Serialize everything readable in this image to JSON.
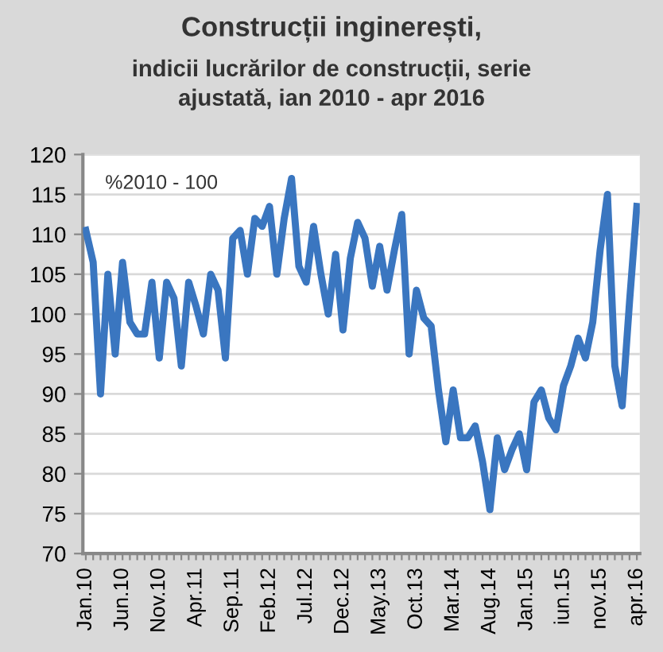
{
  "chart_data": {
    "type": "line",
    "title": "Construcții inginerești,",
    "subtitle": "indicii lucrărilor de construcții, serie\najustată, ian 2010 - apr 2016",
    "annotations": [
      "%2010 - 100"
    ],
    "categories": [
      "Jan.10",
      null,
      null,
      null,
      null,
      "Jun.10",
      null,
      null,
      null,
      null,
      "Nov.10",
      null,
      null,
      null,
      null,
      "Apr.11",
      null,
      null,
      null,
      null,
      "Sep.11",
      null,
      null,
      null,
      null,
      "Feb.12",
      null,
      null,
      null,
      null,
      "Jul.12",
      null,
      null,
      null,
      null,
      "Dec.12",
      null,
      null,
      null,
      null,
      "May.13",
      null,
      null,
      null,
      null,
      "Oct.13",
      null,
      null,
      null,
      null,
      "Mar.14",
      null,
      null,
      null,
      null,
      "Aug.14",
      null,
      null,
      null,
      null,
      "Jan.15",
      null,
      null,
      null,
      null,
      "iun.15",
      null,
      null,
      null,
      null,
      "nov.15",
      null,
      null,
      null,
      null,
      "apr.16"
    ],
    "series": [
      {
        "color": "#3a76c0",
        "values": [
          110.5,
          106.5,
          90,
          105,
          95,
          106.5,
          99,
          97.5,
          97.5,
          104,
          94.5,
          104,
          102,
          93.5,
          104,
          101,
          97.5,
          105,
          103,
          94.5,
          109.5,
          110.5,
          105,
          112,
          111,
          113.5,
          105,
          112,
          117,
          106,
          104,
          111,
          105,
          100,
          107.5,
          98,
          107,
          111.5,
          109.5,
          103.5,
          108.5,
          103,
          108,
          112.5,
          95,
          103,
          99.5,
          98.5,
          90.5,
          84,
          90.5,
          84.5,
          84.5,
          86,
          81.5,
          75.5,
          84.5,
          80.5,
          83,
          85,
          80.5,
          89,
          90.5,
          87,
          85.5,
          91,
          93.5,
          97,
          94.5,
          99,
          108,
          115,
          93.5,
          88.5,
          101.5,
          113.5
        ]
      }
    ],
    "ylim": [
      70,
      120
    ],
    "yticks": [
      70,
      75,
      80,
      85,
      90,
      95,
      100,
      105,
      110,
      115,
      120
    ],
    "grid": "y",
    "marker": "none",
    "line_style": "solid"
  }
}
